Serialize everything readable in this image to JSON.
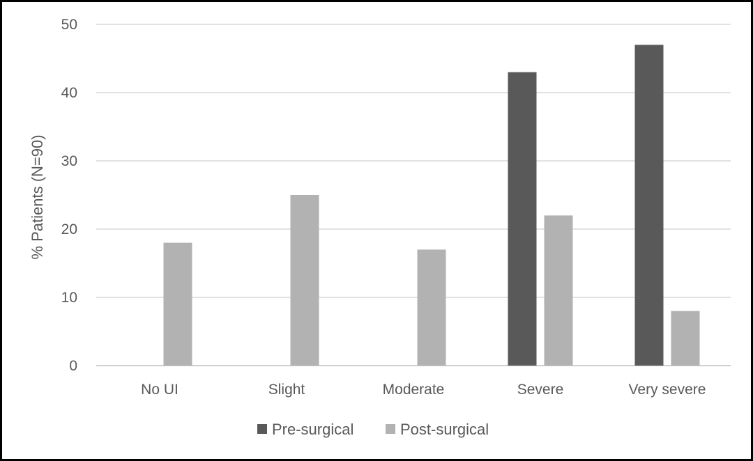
{
  "chart_data": {
    "type": "bar",
    "title": "",
    "xlabel": "",
    "ylabel": "% Patients (N=90)",
    "categories": [
      "No UI",
      "Slight",
      "Moderate",
      "Severe",
      "Very severe"
    ],
    "series": [
      {
        "name": "Pre-surgical",
        "values": [
          0,
          0,
          0,
          43,
          47
        ],
        "color": "#595959"
      },
      {
        "name": "Post-surgical",
        "values": [
          18,
          25,
          17,
          22,
          8
        ],
        "color": "#b2b2b2"
      }
    ],
    "ylim": [
      0,
      50
    ],
    "yticks": [
      0,
      10,
      20,
      30,
      40,
      50
    ],
    "grid": true,
    "legend_position": "bottom"
  },
  "colors": {
    "grid": "#d9d9d9",
    "axis": "#bfbfbf",
    "text": "#595959",
    "frame": "#000000"
  }
}
